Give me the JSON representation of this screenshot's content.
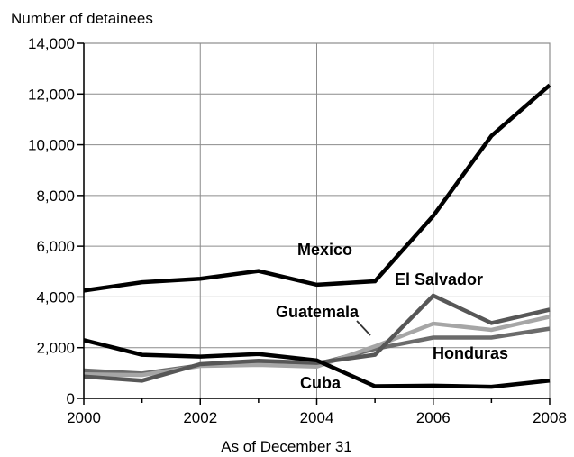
{
  "chart_data": {
    "type": "line",
    "ylabel": "Number of detainees",
    "xlabel": "As of December 31",
    "x": [
      2000,
      2001,
      2002,
      2003,
      2004,
      2005,
      2006,
      2007,
      2008
    ],
    "xticks": [
      2000,
      2002,
      2004,
      2006,
      2008
    ],
    "xlim": [
      2000,
      2008
    ],
    "ylim": [
      0,
      14000
    ],
    "yticks": [
      0,
      2000,
      4000,
      6000,
      8000,
      10000,
      12000,
      14000
    ],
    "ytick_labels": [
      "0",
      "2,000",
      "4,000",
      "6,000",
      "8,000",
      "10,000",
      "12,000",
      "14,000"
    ],
    "grid": true,
    "series": [
      {
        "name": "Mexico",
        "color": "#000000",
        "values": [
          4250,
          4580,
          4720,
          5020,
          4480,
          4620,
          7200,
          10350,
          12350
        ]
      },
      {
        "name": "Cuba",
        "color": "#000000",
        "values": [
          2300,
          1720,
          1650,
          1750,
          1500,
          480,
          500,
          460,
          700
        ]
      },
      {
        "name": "El Salvador",
        "color": "#575757",
        "values": [
          860,
          700,
          1350,
          1480,
          1400,
          1720,
          4050,
          2970,
          3500
        ]
      },
      {
        "name": "Guatemala",
        "color": "#a6a6a6",
        "values": [
          950,
          920,
          1280,
          1320,
          1250,
          2050,
          2950,
          2700,
          3220
        ]
      },
      {
        "name": "Honduras",
        "color": "#6b6b6b",
        "values": [
          1100,
          980,
          1300,
          1380,
          1350,
          1950,
          2400,
          2400,
          2750
        ]
      }
    ],
    "annotations": [
      {
        "text": "Mexico",
        "series": "Mexico"
      },
      {
        "text": "El Salvador",
        "series": "El Salvador"
      },
      {
        "text": "Guatemala",
        "series": "Guatemala"
      },
      {
        "text": "Honduras",
        "series": "Honduras"
      },
      {
        "text": "Cuba",
        "series": "Cuba"
      }
    ]
  }
}
